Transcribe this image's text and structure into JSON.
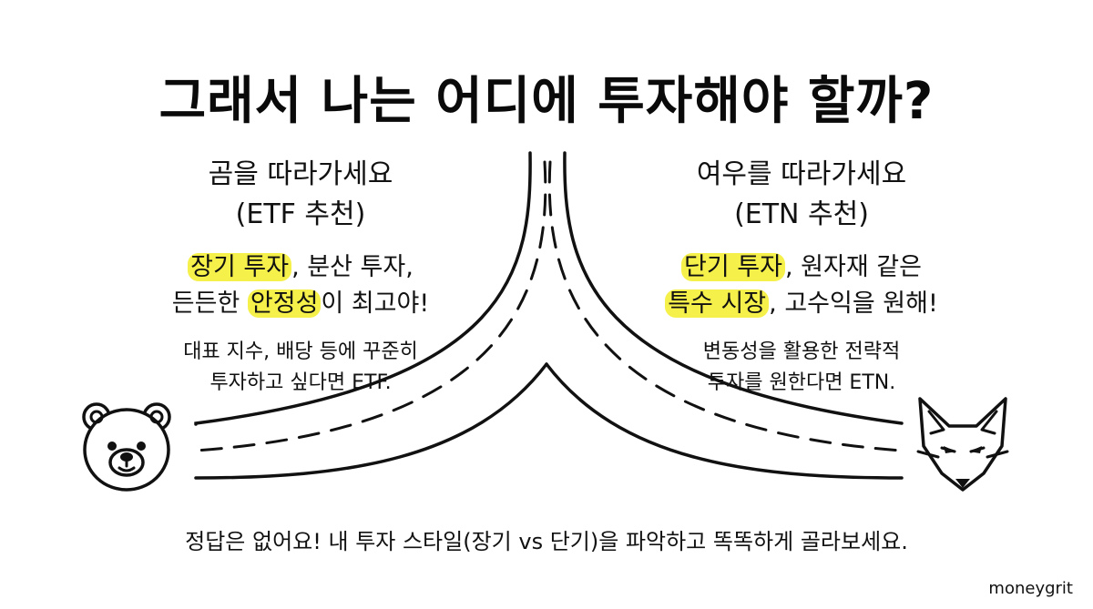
{
  "title": "그래서 나는 어디에 투자해야 할까?",
  "left": {
    "heading": "곰을 따라가세요",
    "sub": "(ETF 추천)",
    "line1": {
      "hl": "장기 투자",
      "rest": ", 분산 투자,"
    },
    "line2": {
      "pre": "든든한 ",
      "hl": "안정성",
      "rest": "이 최고야!"
    },
    "desc1": "대표 지수, 배당 등에 꾸준히",
    "desc2": "투자하고 싶다면 ETF.",
    "icon": "bear-face-icon"
  },
  "right": {
    "heading": "여우를 따라가세요",
    "sub": "(ETN 추천)",
    "line1": {
      "hl": "단기 투자",
      "rest": ", 원자재 같은"
    },
    "line2": {
      "hl": "특수 시장",
      "rest": ", 고수익을 원해!"
    },
    "desc1": "변동성을 활용한 전략적",
    "desc2": "투자를 원한다면 ETN.",
    "icon": "fox-face-icon"
  },
  "footer": "정답은 없어요! 내 투자 스타일(장기 vs 단기)을 파악하고 똑똑하게 골라보세요.",
  "brand": "moneygrit",
  "colors": {
    "highlight": "#f5f04a",
    "ink": "#111111",
    "background": "#ffffff"
  }
}
